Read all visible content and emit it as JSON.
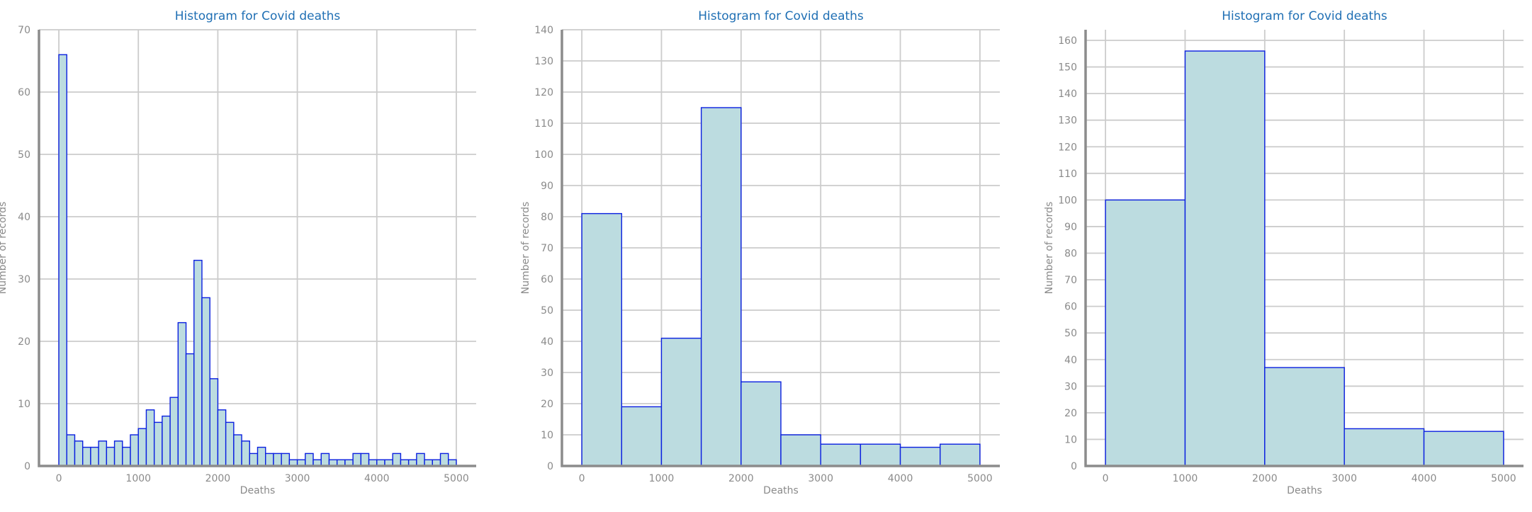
{
  "chart_data": [
    {
      "type": "bar",
      "title": "Histogram for Covid deaths",
      "xlabel": "Deaths",
      "ylabel": "Number of records",
      "xlim": [
        -250,
        5250
      ],
      "ylim": [
        0,
        70
      ],
      "xticks": [
        0,
        1000,
        2000,
        3000,
        4000,
        5000
      ],
      "yticks": [
        0,
        10,
        20,
        30,
        40,
        50,
        60,
        70
      ],
      "bin_edges_start": 0,
      "bin_width": 100,
      "values": [
        66,
        5,
        4,
        3,
        3,
        4,
        3,
        4,
        3,
        5,
        6,
        9,
        7,
        8,
        11,
        23,
        18,
        33,
        27,
        14,
        9,
        7,
        5,
        4,
        2,
        3,
        2,
        2,
        2,
        1,
        1,
        2,
        1,
        2,
        1,
        1,
        1,
        2,
        2,
        1,
        1,
        1,
        2,
        1,
        1,
        2,
        1,
        1,
        2,
        1
      ]
    },
    {
      "type": "bar",
      "title": "Histogram for Covid deaths",
      "xlabel": "Deaths",
      "ylabel": "Number of records",
      "xlim": [
        -250,
        5250
      ],
      "ylim": [
        0,
        140
      ],
      "xticks": [
        0,
        1000,
        2000,
        3000,
        4000,
        5000
      ],
      "yticks": [
        0,
        10,
        20,
        30,
        40,
        50,
        60,
        70,
        80,
        90,
        100,
        110,
        120,
        130,
        140
      ],
      "bin_edges_start": 0,
      "bin_width": 500,
      "values": [
        81,
        19,
        41,
        115,
        27,
        10,
        7,
        7,
        6,
        7
      ]
    },
    {
      "type": "bar",
      "title": "Histogram for Covid deaths",
      "xlabel": "Deaths",
      "ylabel": "Number of records",
      "xlim": [
        -250,
        5250
      ],
      "ylim": [
        0,
        164
      ],
      "xticks": [
        0,
        1000,
        2000,
        3000,
        4000,
        5000
      ],
      "yticks": [
        0,
        10,
        20,
        30,
        40,
        50,
        60,
        70,
        80,
        90,
        100,
        110,
        120,
        130,
        140,
        150,
        160
      ],
      "bin_edges_start": 0,
      "bin_width": 1000,
      "values": [
        100,
        156,
        37,
        14,
        13
      ]
    }
  ]
}
